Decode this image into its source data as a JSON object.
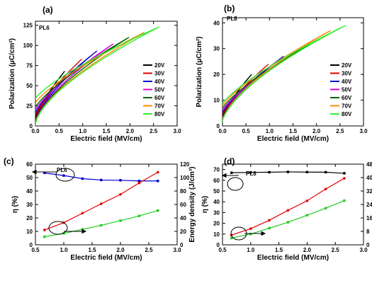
{
  "chart_data": [
    {
      "type": "line",
      "panel": "(a)",
      "sample": "PL6",
      "xlabel": "Electric field (MV/cm)",
      "ylabel": "Polarization (μC/cm²)",
      "xlim": [
        0,
        3.0
      ],
      "ylim": [
        0,
        130
      ],
      "xticks": [
        "0.0",
        "0.5",
        "1.0",
        "1.5",
        "2.0",
        "2.5",
        "3.0"
      ],
      "yticks": [
        "0",
        "25",
        "50",
        "75",
        "100",
        "125"
      ],
      "legend_position": "right",
      "series": [
        {
          "name": "20V",
          "color": "#000000",
          "emax": 0.62,
          "pmax": 68,
          "pr": 3
        },
        {
          "name": "30V",
          "color": "#e00000",
          "emax": 0.98,
          "pmax": 83,
          "pr": 6
        },
        {
          "name": "40V",
          "color": "#0000d0",
          "emax": 1.3,
          "pmax": 93,
          "pr": 10
        },
        {
          "name": "50V",
          "color": "#e000e0",
          "emax": 1.65,
          "pmax": 102,
          "pr": 14
        },
        {
          "name": "60V",
          "color": "#006400",
          "emax": 1.98,
          "pmax": 110,
          "pr": 18
        },
        {
          "name": "70V",
          "color": "#ff8c00",
          "emax": 2.3,
          "pmax": 116,
          "pr": 24
        },
        {
          "name": "80V",
          "color": "#33ee33",
          "emax": 2.62,
          "pmax": 123,
          "pr": 30
        }
      ]
    },
    {
      "type": "line",
      "panel": "(b)",
      "sample": "PL8",
      "xlabel": "Electric field (MV/cm)",
      "ylabel": "Polarization (μC/cm²)",
      "xlim": [
        0,
        3.0
      ],
      "ylim": [
        0,
        42
      ],
      "xticks": [
        "0.0",
        "0.5",
        "1.0",
        "1.5",
        "2.0",
        "2.5",
        "3.0"
      ],
      "yticks": [
        "0",
        "10",
        "20",
        "30",
        "40"
      ],
      "legend_position": "right",
      "series": [
        {
          "name": "20V",
          "color": "#000000",
          "emax": 0.62,
          "pmax": 20,
          "pr": 1
        },
        {
          "name": "30V",
          "color": "#e00000",
          "emax": 0.98,
          "pmax": 24,
          "pr": 2
        },
        {
          "name": "40V",
          "color": "#0000d0",
          "emax": 1.3,
          "pmax": 27,
          "pr": 3
        },
        {
          "name": "50V",
          "color": "#e000e0",
          "emax": 1.65,
          "pmax": 30,
          "pr": 4
        },
        {
          "name": "60V",
          "color": "#006400",
          "emax": 1.98,
          "pmax": 33,
          "pr": 5
        },
        {
          "name": "70V",
          "color": "#ff8c00",
          "emax": 2.3,
          "pmax": 37,
          "pr": 6
        },
        {
          "name": "80V",
          "color": "#33ee33",
          "emax": 2.62,
          "pmax": 39,
          "pr": 7
        }
      ]
    },
    {
      "type": "line",
      "panel": "(c)",
      "sample": "PL6",
      "xlabel": "Electric field (MV/cm)",
      "ylabel": "η (%)",
      "y2label": "Energy density (J/cm³)",
      "xlim": [
        0.5,
        3.0
      ],
      "ylim": [
        0,
        60
      ],
      "y2lim": [
        0,
        120
      ],
      "xticks": [
        "0.5",
        "1.0",
        "1.5",
        "2.0",
        "2.5",
        "3.0"
      ],
      "yticks": [
        "0",
        "10",
        "20",
        "30",
        "40",
        "50",
        "60"
      ],
      "y2ticks": [
        "0",
        "20",
        "40",
        "60",
        "80",
        "100",
        "120"
      ],
      "x": [
        0.66,
        1.0,
        1.33,
        1.66,
        2.0,
        2.33,
        2.66
      ],
      "series": [
        {
          "name": "η",
          "axis": "left",
          "color": "#0000d0",
          "marker": "square",
          "values": [
            53.5,
            51.5,
            49.2,
            48.2,
            48.0,
            47.5,
            47.5
          ]
        },
        {
          "name": "Energy density (red)",
          "axis": "right",
          "color": "#e00000",
          "marker": "circle",
          "values": [
            22,
            33,
            47,
            61,
            75,
            92,
            108
          ]
        },
        {
          "name": "Energy density (green)",
          "axis": "right",
          "color": "#22cc22",
          "marker": "square",
          "values": [
            12,
            17,
            23,
            29,
            36,
            43,
            51
          ]
        }
      ]
    },
    {
      "type": "line",
      "panel": "(d)",
      "sample": "PL8",
      "xlabel": "Electric field (MV/cm)",
      "ylabel": "η (%)",
      "y2label": "Energy density (J/cm³)",
      "xlim": [
        0.5,
        3.0
      ],
      "ylim": [
        0,
        75
      ],
      "y2lim": [
        0,
        48
      ],
      "xticks": [
        "0.5",
        "1.0",
        "1.5",
        "2.0",
        "2.5",
        "3.0"
      ],
      "yticks": [
        "0",
        "10",
        "20",
        "30",
        "40",
        "50",
        "60",
        "70"
      ],
      "y2ticks": [
        "0",
        "8",
        "16",
        "24",
        "32",
        "40",
        "48"
      ],
      "x": [
        0.66,
        1.0,
        1.33,
        1.66,
        2.0,
        2.33,
        2.66
      ],
      "series": [
        {
          "name": "η",
          "axis": "left",
          "color": "#000000",
          "marker": "square",
          "values": [
            67,
            67.3,
            67.5,
            67.8,
            67.6,
            67.5,
            66.5
          ]
        },
        {
          "name": "Energy density (red)",
          "axis": "right",
          "color": "#e00000",
          "marker": "circle",
          "values": [
            5.8,
            9.6,
            14.6,
            20.5,
            26.2,
            33.2,
            39.6
          ]
        },
        {
          "name": "Energy density (green)",
          "axis": "right",
          "color": "#22cc22",
          "marker": "square",
          "values": [
            4,
            6.4,
            9.9,
            13.4,
            17.6,
            21.8,
            26.3
          ]
        }
      ]
    }
  ]
}
